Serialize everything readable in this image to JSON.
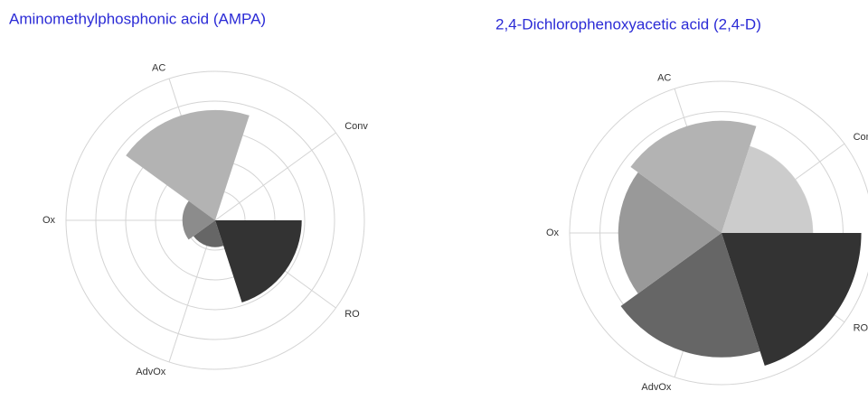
{
  "chart_data": [
    {
      "type": "polar-area",
      "title": "Aminomethylphosphonic acid (AMPA)",
      "categories": [
        "AC",
        "Conv",
        "RO",
        "AdvOx",
        "Ox"
      ],
      "values": [
        3.7,
        0,
        2.9,
        0.9,
        1.1
      ],
      "colors": [
        "#b3b3b3",
        "#cccccc",
        "#333333",
        "#666666",
        "#8c8c8c"
      ],
      "rlim": [
        0,
        5
      ],
      "rticks": [
        1,
        2,
        3,
        4,
        5
      ],
      "grid": true
    },
    {
      "type": "polar-area",
      "title": "2,4-Dichlorophenoxyacetic acid (2,4-D)",
      "categories": [
        "AC",
        "Conv",
        "RO",
        "AdvOx",
        "Ox"
      ],
      "values": [
        3.7,
        3.0,
        4.6,
        4.1,
        3.4
      ],
      "colors": [
        "#b3b3b3",
        "#cccccc",
        "#333333",
        "#666666",
        "#999999"
      ],
      "rlim": [
        0,
        5
      ],
      "rticks": [
        1,
        2,
        3,
        4,
        5
      ],
      "grid": true
    }
  ]
}
